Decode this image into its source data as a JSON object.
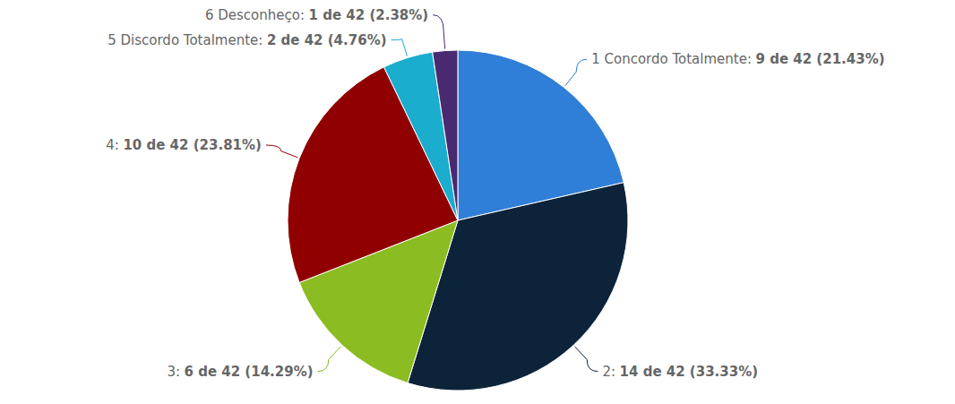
{
  "chart_data": {
    "type": "pie",
    "categories": [
      "1 Concordo Totalmente:",
      "2:",
      "3:",
      "4:",
      "5 Discordo Totalmente:",
      "6 Desconheço:"
    ],
    "values": [
      9,
      14,
      6,
      10,
      2,
      1
    ],
    "value_labels": [
      "9 de 42 (21.43%)",
      "14 de 42 (33.33%)",
      "6 de 42 (14.29%)",
      "10 de 42 (23.81%)",
      "2 de 42 (4.76%)",
      "1 de 42 (2.38%)"
    ],
    "colors": [
      "#2f7ed8",
      "#0d233a",
      "#8bbc21",
      "#910000",
      "#1aadce",
      "#492970"
    ],
    "data_labels": true
  }
}
